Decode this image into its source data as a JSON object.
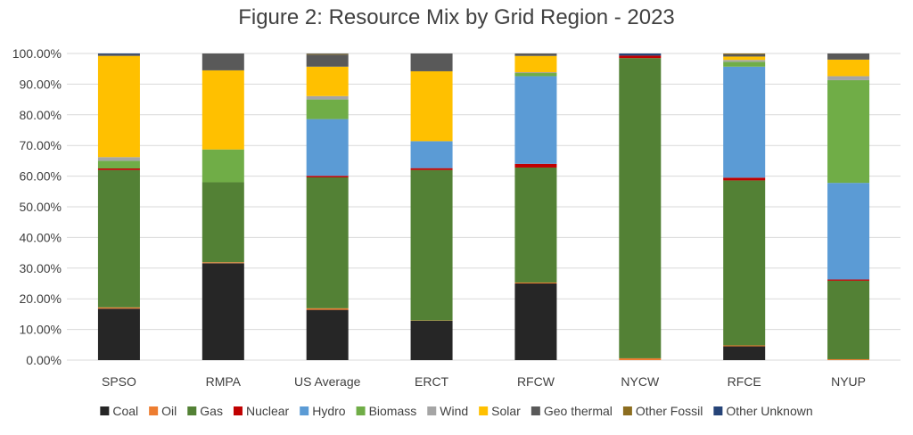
{
  "chart_data": {
    "type": "bar",
    "stacked": true,
    "title": "Figure 2: Resource Mix by Grid Region - 2023",
    "xlabel": "",
    "ylabel": "",
    "ylim": [
      0,
      100
    ],
    "y_ticks": [
      "0.00%",
      "10.00%",
      "20.00%",
      "30.00%",
      "40.00%",
      "50.00%",
      "60.00%",
      "70.00%",
      "80.00%",
      "90.00%",
      "100.00%"
    ],
    "grid": "horizontal",
    "legend_position": "bottom",
    "categories": [
      "SPSO",
      "RMPA",
      "US Average",
      "ERCT",
      "RFCW",
      "NYCW",
      "RFCE",
      "NYUP"
    ],
    "series": [
      {
        "name": "Coal",
        "color": "#262626",
        "values": [
          16.8,
          31.6,
          16.4,
          12.8,
          25.0,
          0.0,
          4.5,
          0.0
        ]
      },
      {
        "name": "Oil",
        "color": "#ED7D31",
        "values": [
          0.4,
          0.3,
          0.5,
          0.1,
          0.3,
          0.6,
          0.3,
          0.3
        ]
      },
      {
        "name": "Gas",
        "color": "#538135",
        "values": [
          44.8,
          26.1,
          42.7,
          49.1,
          37.5,
          97.9,
          53.8,
          25.6
        ]
      },
      {
        "name": "Nuclear",
        "color": "#C00000",
        "values": [
          0.5,
          0.0,
          0.5,
          0.6,
          1.2,
          0.8,
          0.9,
          0.4
        ]
      },
      {
        "name": "Hydro",
        "color": "#5B9BD5",
        "values": [
          0.0,
          0.0,
          18.5,
          8.8,
          28.6,
          0.0,
          36.2,
          31.5
        ]
      },
      {
        "name": "Biomass",
        "color": "#70AD47",
        "values": [
          2.5,
          10.7,
          6.4,
          0.0,
          1.0,
          0.0,
          1.6,
          33.5
        ]
      },
      {
        "name": "Wind",
        "color": "#A5A5A5",
        "values": [
          1.2,
          0.0,
          1.1,
          0.0,
          0.3,
          0.0,
          0.6,
          1.3
        ]
      },
      {
        "name": "Solar",
        "color": "#FFC000",
        "values": [
          33.0,
          25.8,
          9.6,
          22.8,
          5.3,
          0.0,
          1.1,
          5.4
        ]
      },
      {
        "name": "Geo thermal",
        "color": "#595959",
        "values": [
          0.5,
          5.5,
          3.9,
          5.8,
          1.0,
          0.0,
          0.7,
          2.0
        ]
      },
      {
        "name": "Other Fossil",
        "color": "#8C6D1F",
        "values": [
          0.0,
          0.0,
          0.3,
          0.0,
          0.0,
          0.0,
          0.3,
          0.0
        ]
      },
      {
        "name": "Other Unknown",
        "color": "#264478",
        "values": [
          0.3,
          0.0,
          0.1,
          0.0,
          0.0,
          0.7,
          0.0,
          0.0
        ]
      }
    ]
  }
}
